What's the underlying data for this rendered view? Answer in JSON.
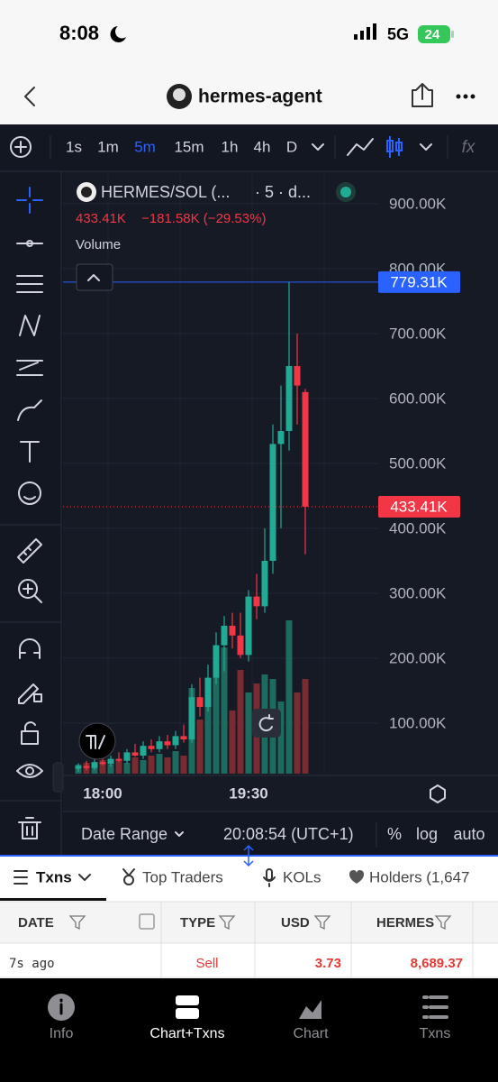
{
  "status": {
    "time": "8:08",
    "network": "5G",
    "battery": "24"
  },
  "header": {
    "title": "hermes-agent"
  },
  "toolbar": {
    "intervals": [
      "1s",
      "1m",
      "5m",
      "15m",
      "1h",
      "4h",
      "D"
    ],
    "active_index": 2,
    "formula": "fx"
  },
  "legend": {
    "symbol": "HERMES/SOL (...",
    "interval": "· 5 · d...",
    "price": "433.41K",
    "change": "−181.58K (−29.53%)",
    "study": "Volume"
  },
  "chart": {
    "type": "candlestick",
    "categories": [
      null,
      null,
      null,
      "18:00",
      null,
      null,
      null,
      null,
      null,
      null,
      null,
      null,
      null,
      null,
      null,
      null,
      null,
      null,
      null,
      null,
      null,
      "19:30",
      null,
      null,
      null,
      null,
      null,
      null,
      null
    ],
    "open": [
      30000,
      34000,
      31000,
      40000,
      37000,
      45000,
      42000,
      55000,
      50000,
      65000,
      60000,
      72000,
      66000,
      80000,
      75000,
      140000,
      125000,
      170000,
      220000,
      250000,
      235000,
      205000,
      295000,
      280000,
      350000,
      530000,
      550000,
      650000,
      610000
    ],
    "high": [
      38000,
      42000,
      45000,
      48000,
      50000,
      55000,
      60000,
      68000,
      72000,
      75000,
      80000,
      82000,
      88000,
      98000,
      160000,
      170000,
      190000,
      240000,
      265000,
      270000,
      270000,
      305000,
      330000,
      400000,
      560000,
      620000,
      779310,
      700000,
      615000
    ],
    "low": [
      25000,
      28000,
      28000,
      35000,
      33000,
      40000,
      38000,
      48000,
      45000,
      55000,
      55000,
      60000,
      60000,
      70000,
      70000,
      110000,
      118000,
      160000,
      180000,
      215000,
      200000,
      195000,
      260000,
      270000,
      330000,
      400000,
      520000,
      560000,
      360000
    ],
    "close": [
      34000,
      31000,
      40000,
      37000,
      45000,
      42000,
      55000,
      50000,
      65000,
      60000,
      72000,
      66000,
      80000,
      75000,
      140000,
      125000,
      170000,
      220000,
      250000,
      235000,
      205000,
      295000,
      280000,
      350000,
      530000,
      550000,
      650000,
      620000,
      433410
    ],
    "volume": [
      10,
      12,
      8,
      15,
      10,
      14,
      12,
      18,
      15,
      20,
      22,
      18,
      25,
      20,
      95,
      60,
      80,
      110,
      140,
      70,
      115,
      90,
      100,
      110,
      105,
      80,
      170,
      90,
      105
    ],
    "up_color": "#22ab94",
    "down_color": "#f23645",
    "up_volume_color": "#1d6b5f",
    "down_volume_color": "#7a2a31",
    "ylim": [
      0,
      950000
    ],
    "yticks": [
      {
        "value": 100000,
        "label": "100.00K"
      },
      {
        "value": 200000,
        "label": "200.00K"
      },
      {
        "value": 300000,
        "label": "300.00K"
      },
      {
        "value": 400000,
        "label": "400.00K"
      },
      {
        "value": 500000,
        "label": "500.00K"
      },
      {
        "value": 600000,
        "label": "600.00K"
      },
      {
        "value": 700000,
        "label": "700.00K"
      },
      {
        "value": 800000,
        "label": "800.00K"
      },
      {
        "value": 900000,
        "label": "900.00K"
      }
    ],
    "price_lines": [
      {
        "value": 779310,
        "label": "779.31K",
        "color": "#2962ff",
        "style": "solid"
      },
      {
        "value": 433410,
        "label": "433.41K",
        "color": "#f23645",
        "style": "dotted"
      }
    ],
    "grid": true
  },
  "bottom_bar": {
    "date_range": "Date Range",
    "time": "20:08:54 (UTC+1)",
    "options": [
      "%",
      "log",
      "auto"
    ]
  },
  "tabs": [
    "Txns",
    "Top Traders",
    "KOLs",
    "Holders (1,647"
  ],
  "table": {
    "columns": [
      "DATE",
      "TYPE",
      "USD",
      "HERMES"
    ],
    "rows": [
      [
        "7s ago",
        "Sell",
        "3.73",
        "8,689.37"
      ]
    ]
  },
  "nav": [
    "Info",
    "Chart+Txns",
    "Chart",
    "Txns"
  ]
}
